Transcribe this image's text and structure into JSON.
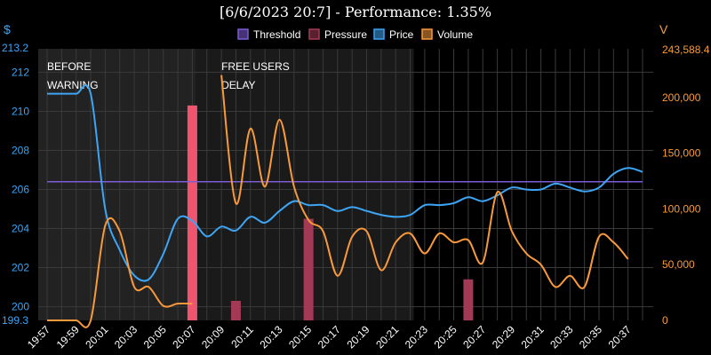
{
  "chart_data": {
    "type": "line",
    "title": "[6/6/2023 20:7] - Performance: 1.35%",
    "x": [
      "19:57",
      "19:58",
      "19:59",
      "20:00",
      "20:01",
      "20:02",
      "20:03",
      "20:04",
      "20:05",
      "20:06",
      "20:07",
      "20:08",
      "20:09",
      "20:10",
      "20:11",
      "20:12",
      "20:13",
      "20:14",
      "20:15",
      "20:16",
      "20:17",
      "20:18",
      "20:19",
      "20:20",
      "20:21",
      "20:22",
      "20:23",
      "20:24",
      "20:25",
      "20:26",
      "20:27",
      "20:28",
      "20:29",
      "20:30",
      "20:31",
      "20:32",
      "20:33",
      "20:34",
      "20:35",
      "20:36",
      "20:37",
      "20:38"
    ],
    "x_tick_labels": [
      "19:57",
      "19:59",
      "20:01",
      "20:03",
      "20:05",
      "20:07",
      "20:09",
      "20:11",
      "20:13",
      "20:15",
      "20:17",
      "20:19",
      "20:21",
      "20:23",
      "20:25",
      "20:27",
      "20:29",
      "20:31",
      "20:33",
      "20:35",
      "20:37"
    ],
    "left_axis": {
      "unit": "$",
      "range": [
        199.3,
        213.2
      ],
      "range_labels": [
        "199.3",
        "213.2"
      ],
      "ticks": [
        200,
        202,
        204,
        206,
        208,
        210,
        212
      ],
      "color": "#3da5f4"
    },
    "right_axis": {
      "unit": "V",
      "range": [
        0,
        243588.4
      ],
      "range_labels": [
        "0",
        "243,588.4"
      ],
      "ticks": [
        0,
        50000,
        100000,
        150000,
        200000
      ],
      "tick_labels": [
        "0",
        "50,000",
        "100,000",
        "150,000",
        "200,000"
      ],
      "color": "#f89a3c"
    },
    "legend": {
      "position": "top-center",
      "items": [
        "Threshold",
        "Pressure",
        "Price",
        "Volume"
      ]
    },
    "series": [
      {
        "name": "Threshold",
        "kind": "hline",
        "axis": "left",
        "value": 206.4,
        "color": "#7b5cd6"
      },
      {
        "name": "Pressure",
        "kind": "bar",
        "axis": "left",
        "points": [
          {
            "x": "20:07",
            "value": 210.3,
            "color": "#f0556f"
          },
          {
            "x": "20:10",
            "value": 200.3,
            "color": "#a23a55"
          },
          {
            "x": "20:15",
            "value": 204.5,
            "color": "#a23a55"
          },
          {
            "x": "20:26",
            "value": 201.4,
            "color": "#a23a55"
          }
        ]
      },
      {
        "name": "Price",
        "kind": "line",
        "axis": "left",
        "color": "#3da5f4",
        "values": [
          210.9,
          210.9,
          210.9,
          210.9,
          205.0,
          202.9,
          201.6,
          201.4,
          202.7,
          204.5,
          204.4,
          203.6,
          204.1,
          203.9,
          204.6,
          204.3,
          204.9,
          205.4,
          205.2,
          205.2,
          204.9,
          205.1,
          204.9,
          204.7,
          204.6,
          204.7,
          205.2,
          205.2,
          205.3,
          205.6,
          205.4,
          205.7,
          206.1,
          206.0,
          206.0,
          206.3,
          206.1,
          205.9,
          206.1,
          206.8,
          207.1,
          206.9
        ]
      },
      {
        "name": "Volume",
        "kind": "line",
        "axis": "right",
        "color": "#f89a3c",
        "values": [
          0,
          0,
          0,
          0,
          85000,
          80000,
          30000,
          30000,
          13000,
          15000,
          15000,
          null,
          220000,
          105000,
          172000,
          120000,
          180000,
          120000,
          90000,
          80000,
          40000,
          75000,
          80000,
          45000,
          70000,
          78000,
          60000,
          78000,
          70000,
          72000,
          52000,
          115000,
          80000,
          60000,
          50000,
          30000,
          40000,
          30000,
          75000,
          70000,
          55000,
          null
        ]
      }
    ],
    "background_bands": [
      {
        "from": "19:57",
        "to": "20:07",
        "color": "#222222"
      },
      {
        "from": "20:07",
        "to": "20:22",
        "color": "#1a1a1a"
      },
      {
        "from": "20:23",
        "to": "20:38",
        "color": "#000000"
      }
    ],
    "annotations": [
      {
        "text": [
          "BEFORE",
          "WARNING"
        ],
        "x": "19:57"
      },
      {
        "text": [
          "FREE USERS",
          "DELAY"
        ],
        "x": "20:09"
      }
    ],
    "grid": true
  }
}
